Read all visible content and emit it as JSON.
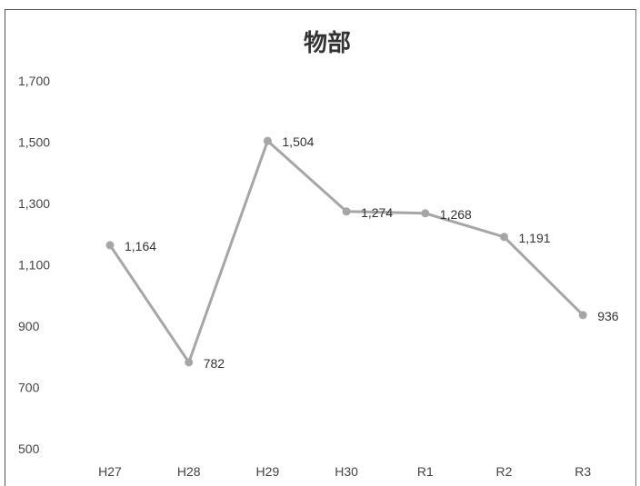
{
  "chart_data": {
    "type": "line",
    "title": "物部",
    "xlabel": "",
    "ylabel": "",
    "categories": [
      "H27",
      "H28",
      "H29",
      "H30",
      "R1",
      "R2",
      "R3"
    ],
    "series": [
      {
        "values": [
          1164,
          782,
          1504,
          1274,
          1268,
          1191,
          936
        ],
        "data_labels": [
          "1,164",
          "782",
          "1,504",
          "1,274",
          "1,268",
          "1,191",
          "936"
        ]
      }
    ],
    "ylim": [
      500,
      1700
    ],
    "y_ticks": [
      500,
      700,
      900,
      1100,
      1300,
      1500,
      1700
    ],
    "y_tick_labels": [
      "500",
      "700",
      "900",
      "1,100",
      "1,300",
      "1,500",
      "1,700"
    ],
    "grid": false,
    "legend": "none",
    "colors": {
      "line": "#a6a6a6",
      "marker": "#a6a6a6",
      "frame": "#555555"
    }
  }
}
